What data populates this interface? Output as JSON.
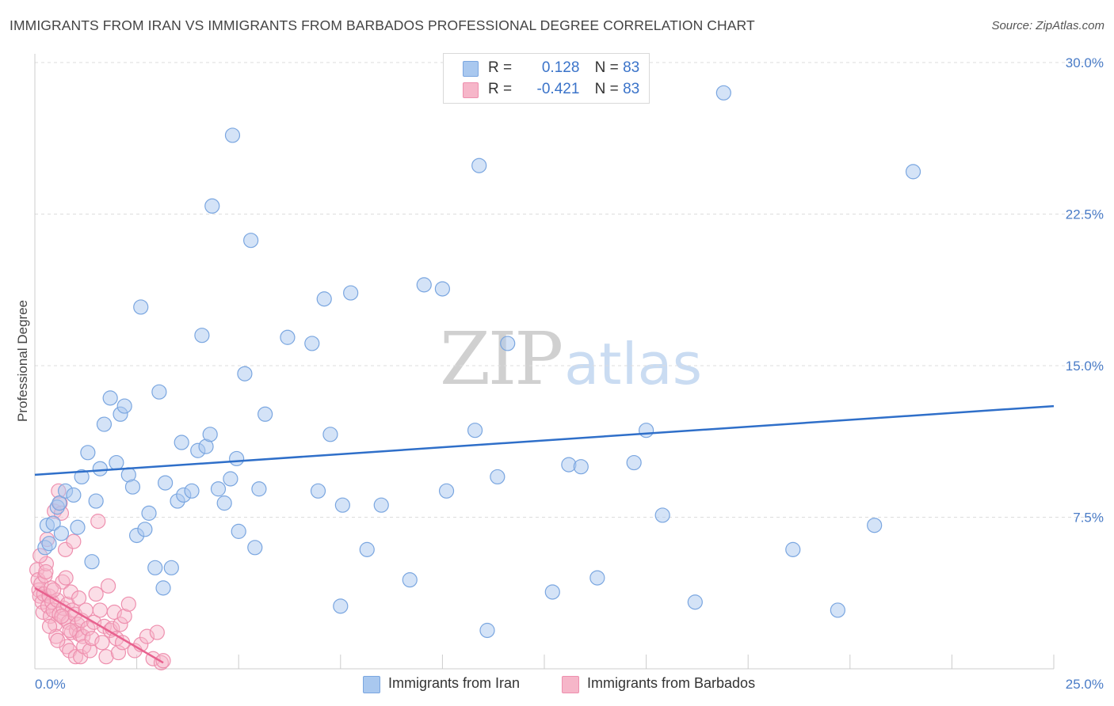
{
  "header": {
    "title": "IMMIGRANTS FROM IRAN VS IMMIGRANTS FROM BARBADOS PROFESSIONAL DEGREE CORRELATION CHART",
    "source": "Source: ZipAtlas.com"
  },
  "watermark": {
    "zip": "ZIP",
    "atlas": "atlas"
  },
  "legend": {
    "iran": {
      "r_label": "R =",
      "r_value": "0.128",
      "n_label": "N =",
      "n_value": "83"
    },
    "barbados": {
      "r_label": "R =",
      "r_value": "-0.421",
      "n_label": "N =",
      "n_value": "83"
    }
  },
  "colors": {
    "iran_fill": "#a9c8ef",
    "iran_stroke": "#7aa6e0",
    "iran_line": "#2f6fc9",
    "barbados_fill": "#f6b6c9",
    "barbados_stroke": "#ee8fae",
    "barbados_line": "#e8628f",
    "grid": "#dddddd",
    "axis_label": "#4a7cc7"
  },
  "chart_data": {
    "type": "scatter",
    "title": "IMMIGRANTS FROM IRAN VS IMMIGRANTS FROM BARBADOS PROFESSIONAL DEGREE CORRELATION CHART",
    "xlabel": "",
    "ylabel": "Professional Degree",
    "xlim": [
      0,
      25
    ],
    "ylim": [
      0,
      30
    ],
    "x_tick_labels": [
      "0.0%",
      "25.0%"
    ],
    "y_ticks": [
      7.5,
      15.0,
      22.5,
      30.0
    ],
    "y_tick_labels": [
      "7.5%",
      "15.0%",
      "22.5%",
      "30.0%"
    ],
    "grid": true,
    "legend_position": "bottom",
    "series": [
      {
        "name": "Immigrants from Iran",
        "r": 0.128,
        "n": 83,
        "trend": {
          "x": [
            0,
            25
          ],
          "y": [
            9.6,
            13.0
          ]
        },
        "points": [
          [
            0.25,
            6.0
          ],
          [
            0.3,
            7.1
          ],
          [
            0.45,
            7.2
          ],
          [
            0.55,
            8.0
          ],
          [
            0.6,
            8.2
          ],
          [
            0.75,
            8.8
          ],
          [
            0.95,
            8.6
          ],
          [
            1.05,
            7.0
          ],
          [
            1.15,
            9.5
          ],
          [
            1.3,
            10.7
          ],
          [
            1.4,
            5.3
          ],
          [
            1.5,
            8.3
          ],
          [
            1.6,
            9.9
          ],
          [
            1.7,
            12.1
          ],
          [
            1.85,
            13.4
          ],
          [
            2.0,
            10.2
          ],
          [
            2.1,
            12.6
          ],
          [
            2.2,
            13.0
          ],
          [
            2.3,
            9.6
          ],
          [
            2.4,
            9.0
          ],
          [
            2.5,
            6.6
          ],
          [
            2.6,
            17.9
          ],
          [
            2.7,
            6.9
          ],
          [
            2.8,
            7.7
          ],
          [
            2.95,
            5.0
          ],
          [
            3.05,
            13.7
          ],
          [
            3.15,
            4.0
          ],
          [
            3.2,
            9.2
          ],
          [
            3.35,
            5.0
          ],
          [
            3.5,
            8.3
          ],
          [
            3.6,
            11.2
          ],
          [
            3.65,
            8.6
          ],
          [
            3.85,
            8.8
          ],
          [
            4.0,
            10.8
          ],
          [
            4.1,
            16.5
          ],
          [
            4.2,
            11.0
          ],
          [
            4.3,
            11.6
          ],
          [
            4.35,
            22.9
          ],
          [
            4.5,
            8.9
          ],
          [
            4.65,
            8.2
          ],
          [
            4.8,
            9.4
          ],
          [
            4.85,
            26.4
          ],
          [
            4.95,
            10.4
          ],
          [
            5.0,
            6.8
          ],
          [
            5.15,
            14.6
          ],
          [
            5.3,
            21.2
          ],
          [
            5.4,
            6.0
          ],
          [
            5.5,
            8.9
          ],
          [
            5.65,
            12.6
          ],
          [
            6.2,
            16.4
          ],
          [
            6.8,
            16.1
          ],
          [
            6.95,
            8.8
          ],
          [
            7.1,
            18.3
          ],
          [
            7.25,
            11.6
          ],
          [
            7.5,
            3.1
          ],
          [
            7.55,
            8.1
          ],
          [
            7.75,
            18.6
          ],
          [
            8.15,
            5.9
          ],
          [
            8.5,
            8.1
          ],
          [
            9.2,
            4.4
          ],
          [
            9.55,
            19.0
          ],
          [
            10.0,
            18.8
          ],
          [
            10.1,
            8.8
          ],
          [
            10.8,
            11.8
          ],
          [
            10.9,
            24.9
          ],
          [
            11.1,
            1.9
          ],
          [
            11.35,
            9.5
          ],
          [
            11.6,
            16.1
          ],
          [
            12.7,
            3.8
          ],
          [
            13.1,
            10.1
          ],
          [
            13.4,
            10.0
          ],
          [
            13.8,
            4.5
          ],
          [
            14.7,
            10.2
          ],
          [
            15.0,
            11.8
          ],
          [
            15.4,
            7.6
          ],
          [
            16.2,
            3.3
          ],
          [
            16.9,
            28.5
          ],
          [
            18.6,
            5.9
          ],
          [
            19.7,
            2.9
          ],
          [
            20.6,
            7.1
          ],
          [
            21.55,
            24.6
          ],
          [
            0.35,
            6.2
          ],
          [
            0.65,
            6.7
          ]
        ]
      },
      {
        "name": "Immigrants from Barbados",
        "r": -0.421,
        "n": 83,
        "trend": {
          "x": [
            0,
            3.15
          ],
          "y": [
            4.0,
            0.3
          ]
        },
        "points": [
          [
            0.05,
            4.9
          ],
          [
            0.08,
            4.4
          ],
          [
            0.1,
            3.9
          ],
          [
            0.12,
            3.6
          ],
          [
            0.15,
            4.2
          ],
          [
            0.18,
            3.3
          ],
          [
            0.2,
            2.8
          ],
          [
            0.22,
            3.7
          ],
          [
            0.25,
            4.6
          ],
          [
            0.28,
            5.2
          ],
          [
            0.3,
            6.4
          ],
          [
            0.32,
            3.1
          ],
          [
            0.35,
            3.6
          ],
          [
            0.38,
            2.6
          ],
          [
            0.4,
            4.0
          ],
          [
            0.42,
            3.3
          ],
          [
            0.45,
            2.9
          ],
          [
            0.48,
            7.8
          ],
          [
            0.5,
            2.2
          ],
          [
            0.52,
            1.6
          ],
          [
            0.55,
            3.4
          ],
          [
            0.58,
            8.8
          ],
          [
            0.6,
            2.7
          ],
          [
            0.62,
            8.2
          ],
          [
            0.65,
            7.7
          ],
          [
            0.68,
            4.3
          ],
          [
            0.7,
            3.0
          ],
          [
            0.72,
            2.5
          ],
          [
            0.75,
            5.9
          ],
          [
            0.78,
            1.1
          ],
          [
            0.8,
            3.2
          ],
          [
            0.82,
            2.3
          ],
          [
            0.85,
            0.9
          ],
          [
            0.88,
            3.8
          ],
          [
            0.9,
            1.8
          ],
          [
            0.92,
            2.9
          ],
          [
            0.95,
            6.3
          ],
          [
            0.98,
            2.7
          ],
          [
            1.0,
            0.6
          ],
          [
            1.02,
            1.9
          ],
          [
            1.05,
            2.2
          ],
          [
            1.08,
            3.5
          ],
          [
            1.1,
            1.7
          ],
          [
            1.12,
            0.6
          ],
          [
            1.15,
            2.4
          ],
          [
            1.18,
            1.6
          ],
          [
            1.2,
            1.1
          ],
          [
            1.25,
            2.9
          ],
          [
            1.3,
            2.0
          ],
          [
            1.35,
            0.9
          ],
          [
            1.4,
            1.5
          ],
          [
            1.45,
            2.3
          ],
          [
            1.5,
            3.7
          ],
          [
            1.55,
            7.3
          ],
          [
            1.6,
            2.9
          ],
          [
            1.65,
            1.3
          ],
          [
            1.7,
            2.1
          ],
          [
            1.75,
            0.6
          ],
          [
            1.8,
            4.1
          ],
          [
            1.85,
            1.9
          ],
          [
            1.9,
            2.0
          ],
          [
            1.95,
            2.8
          ],
          [
            2.0,
            1.5
          ],
          [
            2.05,
            0.8
          ],
          [
            2.1,
            2.2
          ],
          [
            2.15,
            1.3
          ],
          [
            2.2,
            2.6
          ],
          [
            2.3,
            3.2
          ],
          [
            2.45,
            0.9
          ],
          [
            2.6,
            1.2
          ],
          [
            2.75,
            1.6
          ],
          [
            2.9,
            0.5
          ],
          [
            3.0,
            1.8
          ],
          [
            3.1,
            0.3
          ],
          [
            3.15,
            0.4
          ],
          [
            0.13,
            5.6
          ],
          [
            0.27,
            4.8
          ],
          [
            0.36,
            2.1
          ],
          [
            0.46,
            3.9
          ],
          [
            0.56,
            1.4
          ],
          [
            0.66,
            2.6
          ],
          [
            0.76,
            4.5
          ],
          [
            0.86,
            1.9
          ]
        ]
      }
    ]
  },
  "bottom_legend": {
    "iran_label": "Immigrants from Iran",
    "barbados_label": "Immigrants from Barbados"
  }
}
